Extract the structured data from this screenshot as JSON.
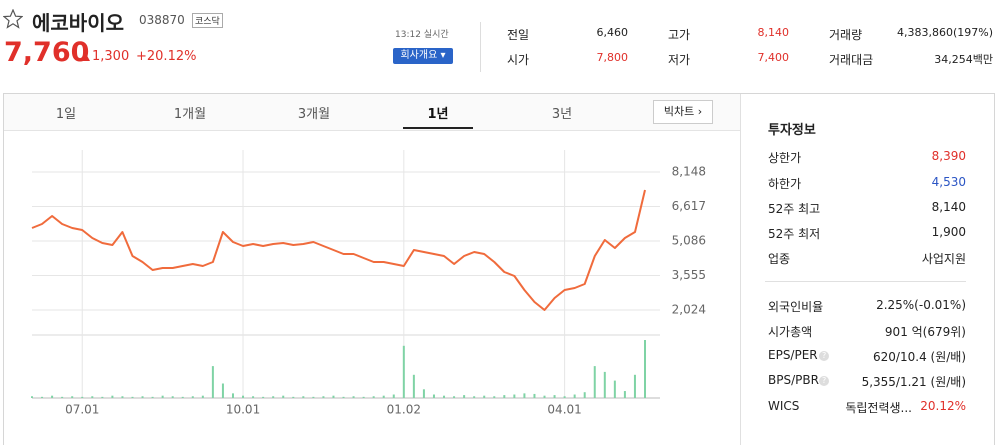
{
  "header": {
    "title": "에코바이오",
    "code": "038870",
    "market": "코스닥",
    "price": "7,760",
    "change": "1,300",
    "change_rate": "+20.12%",
    "time": "13:12 실시간",
    "company_button": "회사개요"
  },
  "quote_table": [
    [
      {
        "label": "전일",
        "value": "6,460"
      },
      {
        "label": "고가",
        "value": "8,140"
      },
      {
        "label": "거래량",
        "value": "4,383,860(197%)"
      }
    ],
    [
      {
        "label": "시가",
        "value": "7,800"
      },
      {
        "label": "저가",
        "value": "7,400"
      },
      {
        "label": "거래대금",
        "value": "34,254백만"
      }
    ]
  ],
  "tabs": {
    "items": [
      "1일",
      "1개월",
      "3개월",
      "1년",
      "3년"
    ],
    "selected": 3,
    "big_chart": "빅차트"
  },
  "chart_data": {
    "type": "line",
    "categories": [
      null,
      null,
      null,
      null,
      null,
      "07.01",
      null,
      null,
      null,
      null,
      null,
      null,
      null,
      null,
      null,
      null,
      null,
      null,
      null,
      null,
      null,
      "10.01",
      null,
      null,
      null,
      null,
      null,
      null,
      null,
      null,
      null,
      null,
      null,
      null,
      null,
      null,
      null,
      "01.02",
      null,
      null,
      null,
      null,
      null,
      null,
      null,
      null,
      null,
      null,
      null,
      null,
      null,
      null,
      null,
      "04.01",
      null,
      null,
      null,
      null,
      null,
      null,
      null,
      null
    ],
    "series": [
      {
        "color": "#f06b3c",
        "values": [
          5663,
          5840,
          6195,
          5840,
          5663,
          5574,
          5219,
          4997,
          4908,
          5485,
          4420,
          4154,
          3799,
          3888,
          3888,
          3976,
          4065,
          3976,
          4154,
          5485,
          5041,
          4864,
          4952,
          4864,
          4952,
          4997,
          4908,
          4952,
          5041,
          4864,
          4686,
          4509,
          4509,
          4331,
          4154,
          4154,
          4065,
          3976,
          4686,
          4598,
          4509,
          4420,
          4065,
          4420,
          4598,
          4509,
          4154,
          3710,
          3532,
          2911,
          2379,
          2024,
          2556,
          2911,
          3000,
          3177,
          4420,
          5130,
          4775,
          5219,
          5485,
          7349
        ]
      }
    ],
    "ylim": [
      1136,
      9124
    ],
    "yticks": [
      {
        "value": 2024,
        "label": "2,024"
      },
      {
        "value": 3555,
        "label": "3,555"
      },
      {
        "value": 5086,
        "label": "5,086"
      },
      {
        "value": 6617,
        "label": "6,617"
      },
      {
        "value": 8148,
        "label": "8,148"
      }
    ],
    "grid": true,
    "volume": {
      "color": "#7fd3a5",
      "ylim": [
        0,
        100
      ],
      "values": [
        3,
        2,
        4,
        2,
        3,
        2,
        3,
        2,
        4,
        3,
        2,
        3,
        2,
        4,
        3,
        2,
        3,
        4,
        55,
        25,
        8,
        4,
        3,
        2,
        3,
        4,
        2,
        3,
        2,
        3,
        4,
        2,
        3,
        2,
        3,
        4,
        6,
        90,
        40,
        15,
        6,
        4,
        3,
        5,
        3,
        4,
        3,
        5,
        6,
        8,
        7,
        4,
        5,
        3,
        6,
        10,
        55,
        45,
        30,
        12,
        40,
        100
      ]
    }
  },
  "info": {
    "title": "투자정보",
    "rows": [
      {
        "label": "상한가",
        "value": "8,390"
      },
      {
        "label": "하한가",
        "value": "4,530"
      },
      {
        "label": "52주 최고",
        "value": "8,140"
      },
      {
        "label": "52주 최저",
        "value": "1,900"
      },
      {
        "label": "업종",
        "value": "사업지원"
      }
    ],
    "rows2": [
      {
        "label": "외국인비율",
        "value": "2.25%(-0.01%)"
      },
      {
        "label": "시가총액",
        "value": "901 억(679위)"
      },
      {
        "label": "EPS/PER",
        "value": "620/10.4 (원/배)"
      },
      {
        "label": "BPS/PBR",
        "value": "5,355/1.21 (원/배)"
      },
      {
        "label": "WICS",
        "value": "독립전력생...",
        "extra": "20.12%"
      }
    ]
  }
}
